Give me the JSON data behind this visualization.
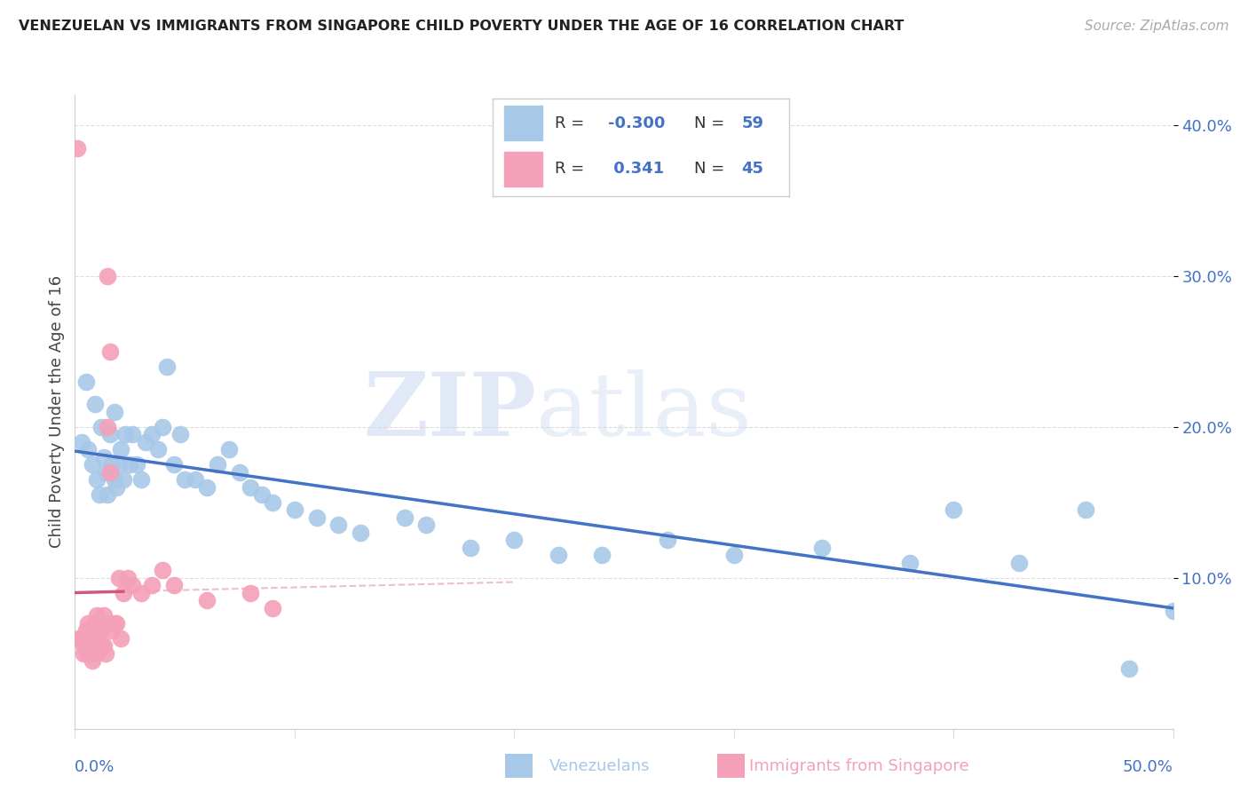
{
  "title": "VENEZUELAN VS IMMIGRANTS FROM SINGAPORE CHILD POVERTY UNDER THE AGE OF 16 CORRELATION CHART",
  "source": "Source: ZipAtlas.com",
  "ylabel": "Child Poverty Under the Age of 16",
  "watermark_zip": "ZIP",
  "watermark_atlas": "atlas",
  "blue_R": -0.3,
  "blue_N": 59,
  "pink_R": 0.341,
  "pink_N": 45,
  "blue_dot_color": "#a8c8e8",
  "pink_dot_color": "#f4a0b8",
  "blue_line_color": "#4472c4",
  "pink_line_color": "#d05878",
  "pink_dash_color": "#e8b0c0",
  "legend_text_color": "#4472c4",
  "legend_R_label_color": "#333333",
  "title_color": "#222222",
  "source_color": "#aaaaaa",
  "ylabel_color": "#444444",
  "tick_color": "#4472c4",
  "grid_color": "#dddddd",
  "bg_color": "#ffffff",
  "xlim": [
    0.0,
    0.5
  ],
  "ylim": [
    0.0,
    0.42
  ],
  "ytick_vals": [
    0.1,
    0.2,
    0.3,
    0.4
  ],
  "ytick_labels": [
    "10.0%",
    "20.0%",
    "30.0%",
    "40.0%"
  ],
  "blue_x": [
    0.003,
    0.005,
    0.006,
    0.008,
    0.009,
    0.01,
    0.011,
    0.012,
    0.013,
    0.014,
    0.015,
    0.016,
    0.017,
    0.018,
    0.018,
    0.019,
    0.02,
    0.021,
    0.022,
    0.023,
    0.025,
    0.026,
    0.028,
    0.03,
    0.032,
    0.035,
    0.038,
    0.04,
    0.042,
    0.045,
    0.048,
    0.05,
    0.055,
    0.06,
    0.065,
    0.07,
    0.075,
    0.08,
    0.085,
    0.09,
    0.1,
    0.11,
    0.12,
    0.13,
    0.15,
    0.16,
    0.18,
    0.2,
    0.22,
    0.24,
    0.27,
    0.3,
    0.34,
    0.38,
    0.4,
    0.43,
    0.46,
    0.48,
    0.5
  ],
  "blue_y": [
    0.19,
    0.23,
    0.185,
    0.175,
    0.215,
    0.165,
    0.155,
    0.2,
    0.18,
    0.17,
    0.155,
    0.195,
    0.175,
    0.165,
    0.21,
    0.16,
    0.175,
    0.185,
    0.165,
    0.195,
    0.175,
    0.195,
    0.175,
    0.165,
    0.19,
    0.195,
    0.185,
    0.2,
    0.24,
    0.175,
    0.195,
    0.165,
    0.165,
    0.16,
    0.175,
    0.185,
    0.17,
    0.16,
    0.155,
    0.15,
    0.145,
    0.14,
    0.135,
    0.13,
    0.14,
    0.135,
    0.12,
    0.125,
    0.115,
    0.115,
    0.125,
    0.115,
    0.12,
    0.11,
    0.145,
    0.11,
    0.145,
    0.04,
    0.078
  ],
  "pink_x": [
    0.001,
    0.002,
    0.003,
    0.004,
    0.004,
    0.005,
    0.005,
    0.006,
    0.006,
    0.007,
    0.007,
    0.008,
    0.008,
    0.009,
    0.009,
    0.01,
    0.01,
    0.01,
    0.011,
    0.011,
    0.012,
    0.012,
    0.013,
    0.013,
    0.014,
    0.014,
    0.015,
    0.015,
    0.016,
    0.016,
    0.017,
    0.018,
    0.019,
    0.02,
    0.021,
    0.022,
    0.024,
    0.026,
    0.03,
    0.035,
    0.04,
    0.045,
    0.06,
    0.08,
    0.09
  ],
  "pink_y": [
    0.385,
    0.06,
    0.06,
    0.055,
    0.05,
    0.065,
    0.055,
    0.07,
    0.05,
    0.065,
    0.05,
    0.06,
    0.045,
    0.07,
    0.055,
    0.075,
    0.06,
    0.05,
    0.07,
    0.055,
    0.065,
    0.055,
    0.075,
    0.055,
    0.07,
    0.05,
    0.3,
    0.2,
    0.25,
    0.17,
    0.065,
    0.07,
    0.07,
    0.1,
    0.06,
    0.09,
    0.1,
    0.095,
    0.09,
    0.095,
    0.105,
    0.095,
    0.085,
    0.09,
    0.08
  ]
}
